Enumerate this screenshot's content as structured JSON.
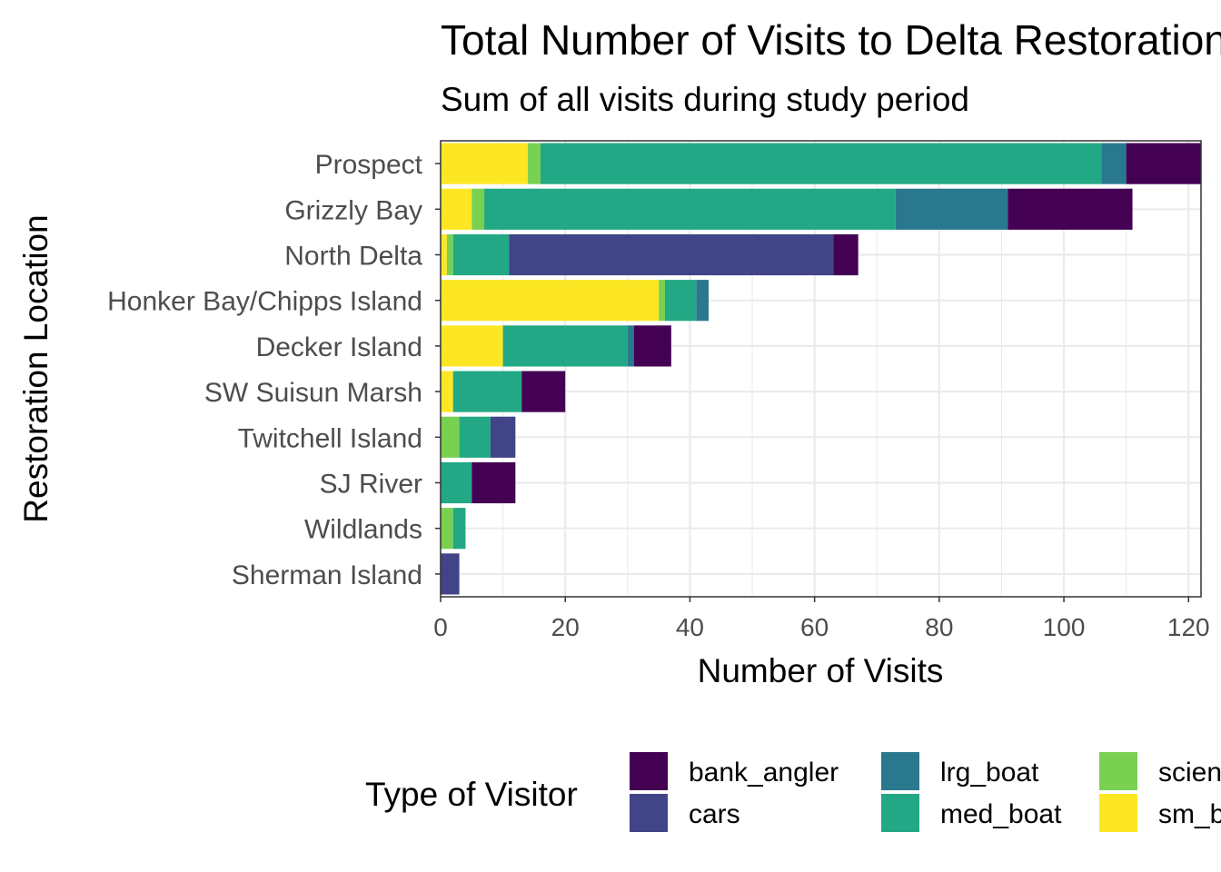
{
  "chart_data": {
    "type": "bar",
    "orientation": "horizontal",
    "stacked": true,
    "title": "Total Number of Visits to Delta Restoration Sites",
    "subtitle": "Sum of all visits during study period",
    "xlabel": "Number of Visits",
    "ylabel": "Restoration Location",
    "xlim": [
      0,
      122
    ],
    "x_ticks": [
      "0",
      "20",
      "40",
      "60",
      "80",
      "100",
      "120"
    ],
    "x_tick_values": [
      0,
      20,
      40,
      60,
      80,
      100,
      120
    ],
    "grid": true,
    "legend_position": "bottom",
    "legend_title": "Type of Visitor",
    "categories": [
      "Prospect",
      "Grizzly Bay",
      "North Delta",
      "Honker Bay/Chipps Island",
      "Decker Island",
      "SW Suisun Marsh",
      "Twitchell Island",
      "SJ River",
      "Wildlands",
      "Sherman Island"
    ],
    "series": [
      {
        "name": "sm_boat",
        "color": "#FDE725",
        "values": [
          14,
          5,
          1,
          35,
          10,
          2,
          0,
          0,
          0,
          0
        ]
      },
      {
        "name": "scientist",
        "color": "#7AD151",
        "values": [
          2,
          2,
          1,
          1,
          0,
          0,
          3,
          0,
          2,
          0
        ]
      },
      {
        "name": "med_boat",
        "color": "#22A884",
        "values": [
          90,
          66,
          9,
          5,
          20,
          11,
          5,
          5,
          2,
          0
        ]
      },
      {
        "name": "lrg_boat",
        "color": "#2A788E",
        "values": [
          4,
          18,
          0,
          2,
          1,
          0,
          0,
          0,
          0,
          0
        ]
      },
      {
        "name": "cars",
        "color": "#414487",
        "values": [
          0,
          0,
          52,
          0,
          0,
          0,
          4,
          0,
          0,
          3
        ]
      },
      {
        "name": "bank_angler",
        "color": "#440154",
        "values": [
          12,
          20,
          4,
          0,
          6,
          7,
          0,
          7,
          0,
          0
        ]
      }
    ],
    "legend_order": [
      "bank_angler",
      "cars",
      "lrg_boat",
      "med_boat",
      "scientist",
      "sm_boat"
    ]
  }
}
